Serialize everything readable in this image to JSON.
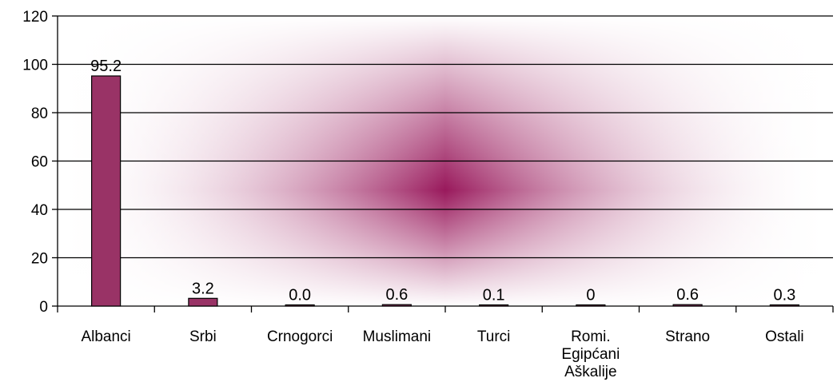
{
  "chart_data": {
    "type": "bar",
    "categories": [
      [
        "Albanci"
      ],
      [
        "Srbi"
      ],
      [
        "Crnogorci"
      ],
      [
        "Muslimani"
      ],
      [
        "Turci"
      ],
      [
        "Romi.",
        "Egipćani",
        "Aškalije"
      ],
      [
        "Strano"
      ],
      [
        "Ostali"
      ]
    ],
    "values": [
      95.2,
      3.2,
      0.0,
      0.6,
      0.1,
      0,
      0.6,
      0.3
    ],
    "value_labels": [
      "95.2",
      "3.2",
      "0.0",
      "0.6",
      "0.1",
      "0",
      "0.6",
      "0.3"
    ],
    "ylim": [
      0,
      120
    ],
    "yticks": [
      0,
      20,
      40,
      60,
      80,
      100,
      120
    ],
    "grid": true,
    "title": "",
    "xlabel": "",
    "ylabel": "",
    "colors": {
      "bar": "#993366",
      "bar_stroke": "#000000",
      "background_center": "#99195c",
      "background_edge": "#ffffff",
      "grid": "#000000"
    }
  }
}
